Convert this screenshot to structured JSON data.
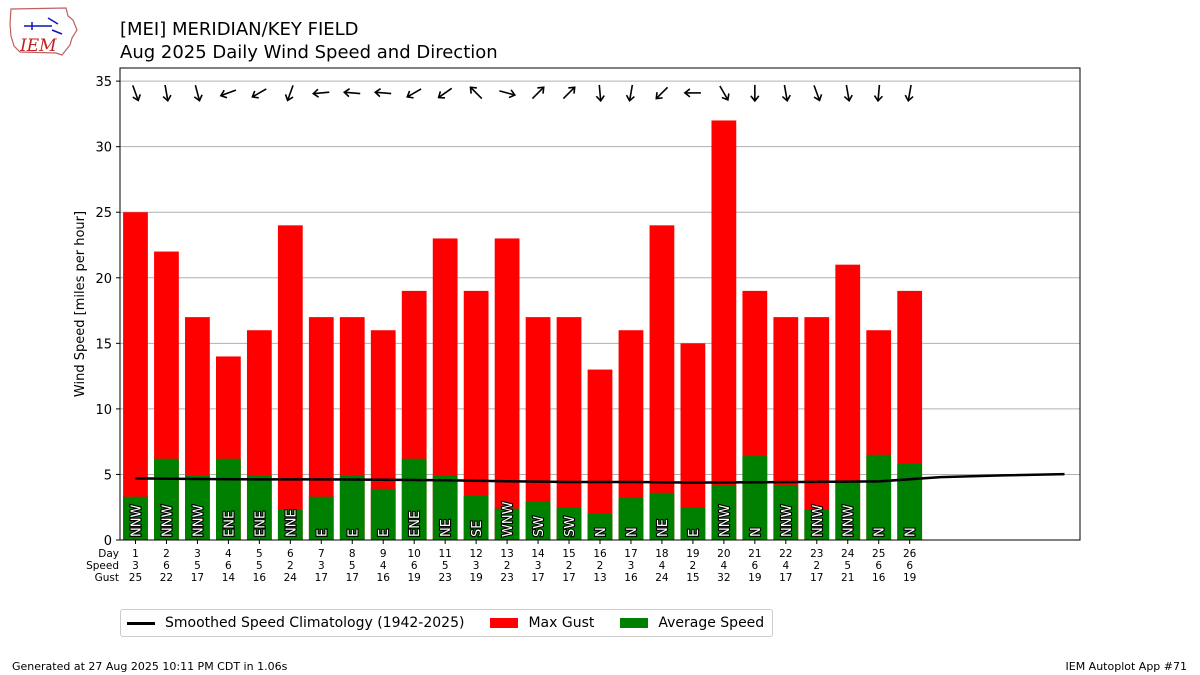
{
  "header": {
    "logo_text": "IEM",
    "title_line1": "[MEI] MERIDIAN/KEY FIELD",
    "title_line2": "Aug 2025 Daily Wind Speed and Direction"
  },
  "axes": {
    "ylabel": "Wind Speed [miles per hour]",
    "row_labels": [
      "Day",
      "Speed",
      "Gust"
    ]
  },
  "legend": {
    "climatology_label": "Smoothed Speed Climatology (1942-2025)",
    "gust_label": "Max Gust",
    "avg_label": "Average Speed"
  },
  "footer": {
    "generated": "Generated at 27 Aug 2025 10:11 PM CDT in 1.06s",
    "app": "IEM Autoplot App #71"
  },
  "colors": {
    "gust": "#ff0000",
    "average": "#008000",
    "climatology": "#000000",
    "grid": "#b0b0b0"
  },
  "chart_data": {
    "type": "bar",
    "ylim": [
      0,
      36
    ],
    "yticks": [
      0,
      5,
      10,
      15,
      20,
      25,
      30,
      35
    ],
    "xlim": [
      0.5,
      31.5
    ],
    "grid": "horizontal",
    "legend_position": "bottom-left",
    "days": [
      1,
      2,
      3,
      4,
      5,
      6,
      7,
      8,
      9,
      10,
      11,
      12,
      13,
      14,
      15,
      16,
      17,
      18,
      19,
      20,
      21,
      22,
      23,
      24,
      25,
      26
    ],
    "speed_labels": [
      "3",
      "6",
      "5",
      "6",
      "5",
      "2",
      "3",
      "5",
      "4",
      "6",
      "5",
      "3",
      "2",
      "3",
      "2",
      "2",
      "3",
      "4",
      "2",
      "4",
      "6",
      "4",
      "2",
      "5",
      "6",
      "6"
    ],
    "gust_labels": [
      "25",
      "22",
      "17",
      "14",
      "16",
      "24",
      "17",
      "17",
      "16",
      "19",
      "23",
      "19",
      "23",
      "17",
      "17",
      "13",
      "16",
      "24",
      "15",
      "32",
      "19",
      "17",
      "17",
      "21",
      "16",
      "19"
    ],
    "series": [
      {
        "name": "Max Gust",
        "values": [
          25,
          22,
          17,
          14,
          16,
          24,
          17,
          17,
          16,
          19,
          23,
          19,
          23,
          17,
          17,
          13,
          16,
          24,
          15,
          32,
          19,
          17,
          17,
          21,
          16,
          19
        ]
      },
      {
        "name": "Average Speed",
        "values": [
          3.3,
          6.2,
          4.9,
          6.2,
          4.9,
          2.3,
          3.3,
          4.9,
          3.9,
          6.2,
          4.9,
          3.4,
          2.4,
          2.9,
          2.5,
          2.0,
          3.2,
          3.6,
          2.5,
          4.2,
          6.4,
          4.2,
          2.3,
          4.5,
          6.5,
          5.8
        ]
      },
      {
        "name": "Smoothed Speed Climatology (1942-2025)",
        "x": [
          1,
          3,
          5,
          7,
          9,
          11,
          13,
          15,
          17,
          19,
          21,
          23,
          25,
          27,
          29,
          31
        ],
        "values": [
          4.7,
          4.65,
          4.62,
          4.62,
          4.6,
          4.55,
          4.48,
          4.42,
          4.42,
          4.38,
          4.4,
          4.43,
          4.47,
          4.8,
          4.93,
          5.03
        ]
      }
    ],
    "directions": [
      "NNW",
      "NNW",
      "NNW",
      "ENE",
      "ENE",
      "NNE",
      "E",
      "E",
      "E",
      "ENE",
      "NE",
      "SE",
      "WNW",
      "SW",
      "SW",
      "N",
      "N",
      "NE",
      "E",
      "NNW",
      "N",
      "NNW",
      "NNW",
      "NNW",
      "N",
      "N"
    ],
    "direction_arrow_degrees": [
      340,
      350,
      345,
      70,
      60,
      20,
      85,
      95,
      95,
      60,
      55,
      135,
      285,
      225,
      225,
      355,
      10,
      45,
      90,
      330,
      0,
      350,
      340,
      350,
      5,
      10
    ]
  }
}
